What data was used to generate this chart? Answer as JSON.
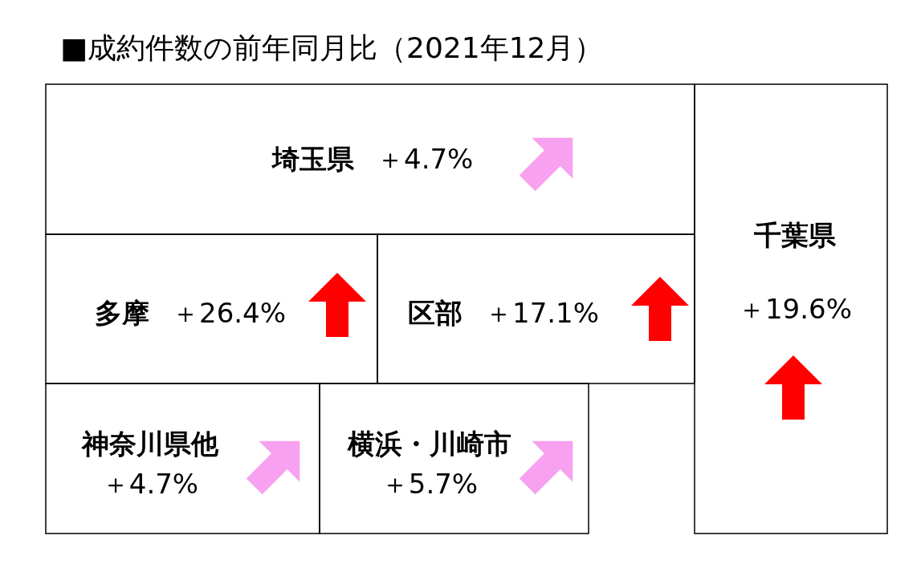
{
  "chart_data": {
    "type": "other",
    "title": "■成約件数の前年同月比（2021年12月）",
    "categories": [
      "埼玉県",
      "多摩",
      "区部",
      "千葉県",
      "神奈川県他",
      "横浜・川崎市"
    ],
    "values": [
      4.7,
      26.4,
      17.1,
      19.6,
      4.7,
      5.7
    ],
    "value_labels": [
      "＋4.7%",
      "＋26.4%",
      "＋17.1%",
      "＋19.6%",
      "＋4.7%",
      "＋5.7%"
    ],
    "colors": [
      "#f7a1f0",
      "#ff0000",
      "#ff0000",
      "#ff0000",
      "#f7a1f0",
      "#f7a1f0"
    ]
  }
}
